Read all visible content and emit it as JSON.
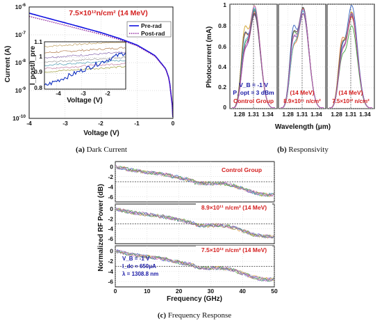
{
  "panels": {
    "a": {
      "caption_letter": "(a)",
      "caption_text": "Dark Current",
      "annotation": "7.5×10¹²n/cm² (14 MeV)",
      "legend": [
        "Pre-rad",
        "Post-rad"
      ],
      "inset_ylabel": "I_post/I_pre",
      "inset_xlabel": "Voltage (V)"
    },
    "b": {
      "caption_letter": "(b)",
      "caption_text": "Responsivity",
      "sub1_line1": "V_B = -1 V",
      "sub1_line2": "P_opt = 3 dBm",
      "sub1_line3": "Control Group",
      "sub2_line1": "(14 MeV)",
      "sub2_line2": "8.9×10¹¹ n/cm²",
      "sub3_line1": "(14 MeV)",
      "sub3_line2": "7.5×10¹² n/cm²"
    },
    "c": {
      "caption_letter": "(c)",
      "caption_text": "Frequency Response",
      "label1": "Control Group",
      "label2": "8.9×10¹¹ n/cm² (14 MeV)",
      "label3": "7.5×10¹² n/cm² (14 MeV)",
      "cond1": "V_B = -1 V",
      "cond2": "I_dc ≈ 650μA",
      "cond3": "λ = 1308.8 nm"
    }
  },
  "chart_data": [
    {
      "type": "line",
      "xlabel": "Voltage (V)",
      "ylabel": "Current (A)",
      "xlim": [
        -4,
        0
      ],
      "ylim": [
        1e-10,
        1e-06
      ],
      "yscale": "log",
      "xticks": [
        -4,
        -3,
        -2,
        -1,
        0
      ],
      "yticks": [
        "10^-10",
        "10^-9",
        "10^-8",
        "10^-7",
        "10^-6"
      ],
      "series": [
        {
          "name": "Pre-rad",
          "color": "#1010e0",
          "style": "solid",
          "x": [
            -4,
            -3.5,
            -3,
            -2.5,
            -2,
            -1.5,
            -1,
            -0.5,
            -0.2,
            -0.1,
            -0.02
          ],
          "y": [
            6e-07,
            4e-07,
            2.7e-07,
            1.8e-07,
            1.2e-07,
            7.5e-08,
            4.3e-08,
            1.8e-08,
            6e-09,
            2.5e-09,
            3e-10
          ]
        },
        {
          "name": "Post-rad",
          "color": "#8a1a9a",
          "style": "dotted",
          "x": [
            -4,
            -3.5,
            -3,
            -2.5,
            -2,
            -1.5,
            -1,
            -0.5,
            -0.2,
            -0.1,
            -0.02
          ],
          "y": [
            4.6e-07,
            3.2e-07,
            2.2e-07,
            1.5e-07,
            1.05e-07,
            6.8e-08,
            4e-08,
            1.7e-08,
            5.8e-09,
            2.4e-09,
            3e-10
          ]
        }
      ],
      "inset": {
        "xlim": [
          -4.5,
          -1.2
        ],
        "ylim": [
          0.8,
          1.1
        ],
        "xticks": [
          -4,
          -3,
          -2
        ],
        "yticks": [
          0.8,
          0.9,
          1,
          1.1
        ]
      }
    },
    {
      "type": "line",
      "xlabel": "Wavelength (μm)",
      "ylabel": "Photocurrent (mA)",
      "xlim": [
        1.26,
        1.36
      ],
      "ylim": [
        0,
        1
      ],
      "xticks": [
        1.28,
        1.31,
        1.34
      ],
      "yticks": [
        0,
        0.2,
        0.4,
        0.6,
        0.8,
        1
      ],
      "subplots": 3,
      "peak_wavelength": 1.31,
      "series_per_subplot": 9
    },
    {
      "type": "line",
      "xlabel": "Frequency (GHz)",
      "ylabel": "Normalized RF Power (dB)",
      "xlim": [
        0,
        50
      ],
      "ylim": [
        -7,
        1
      ],
      "xticks": [
        0,
        10,
        20,
        30,
        40,
        50
      ],
      "yticks": [
        0,
        -2,
        -4,
        -6
      ],
      "reference_line_db": -3,
      "subplots": 3
    }
  ]
}
